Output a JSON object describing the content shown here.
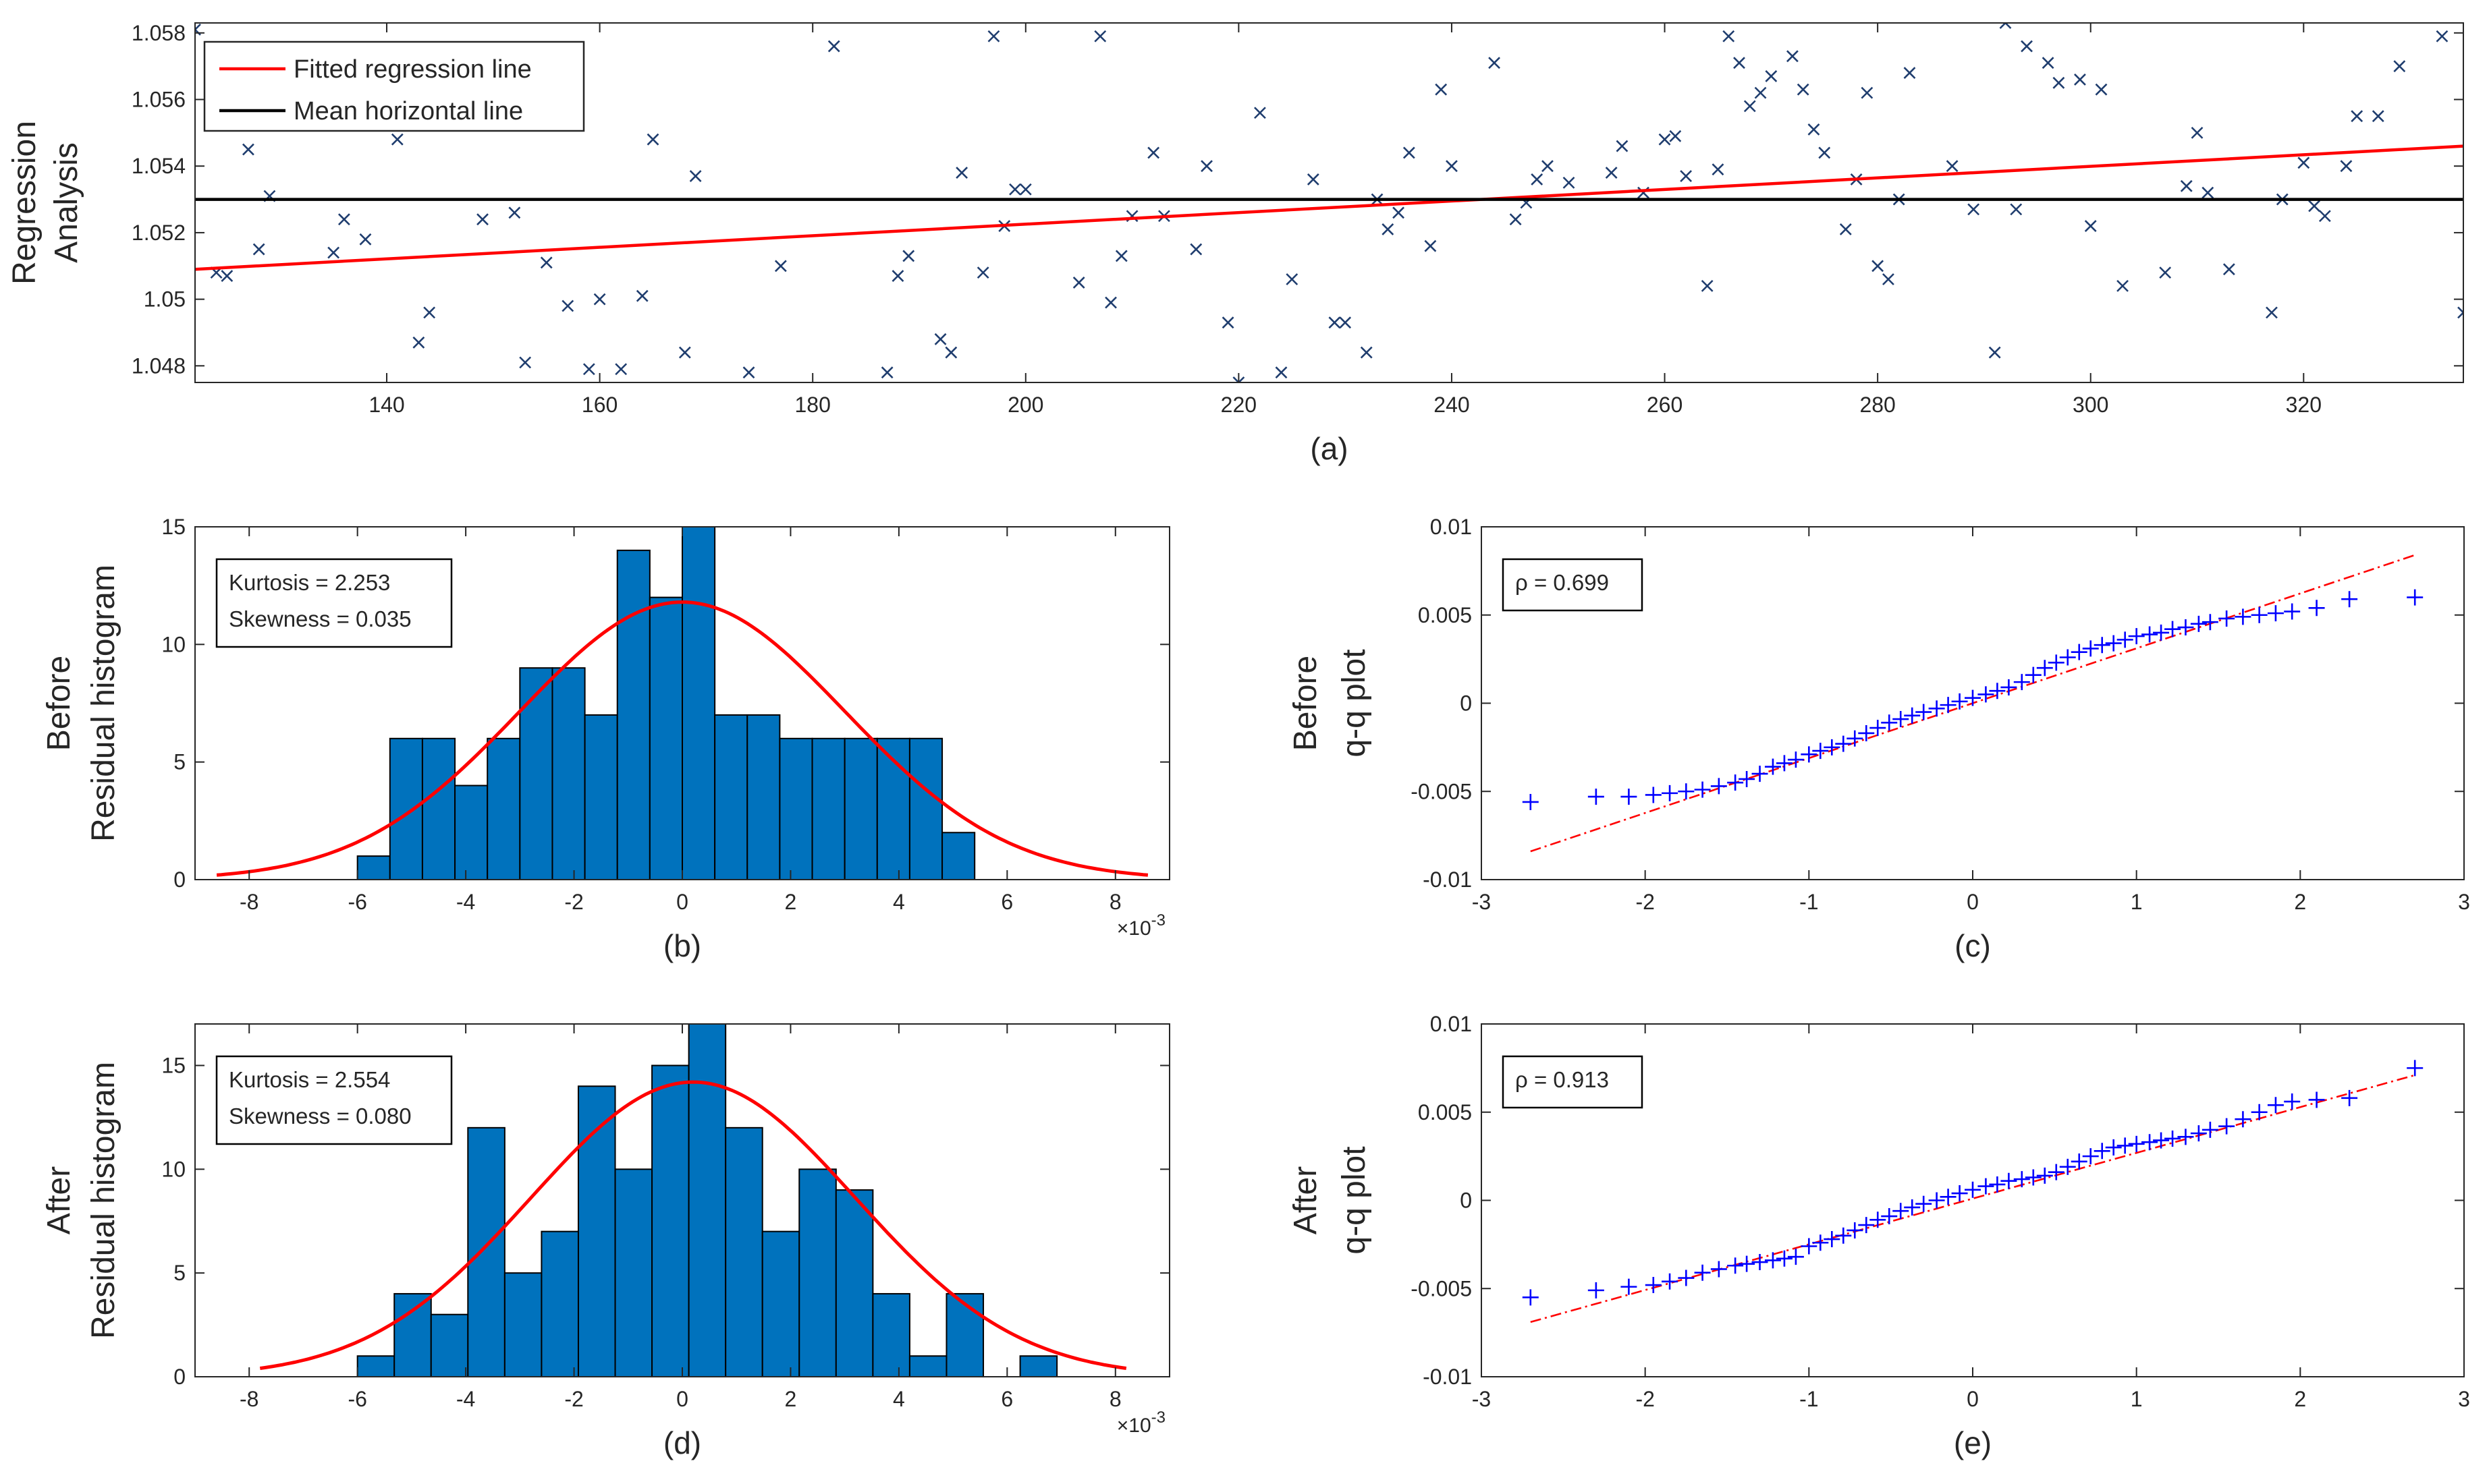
{
  "chart_data": [
    {
      "id": "a",
      "type": "scatter",
      "caption": "(a)",
      "ylabel_lines": [
        "Regression",
        "Analysis"
      ],
      "xlim": [
        122,
        335
      ],
      "ylim": [
        1.0475,
        1.0583
      ],
      "xticks": [
        140,
        160,
        180,
        200,
        220,
        240,
        260,
        280,
        300,
        320
      ],
      "yticks": [
        1.048,
        1.05,
        1.052,
        1.054,
        1.056,
        1.058
      ],
      "ytick_labels": [
        "1.048",
        "1.05",
        "1.052",
        "1.054",
        "1.056",
        "1.058"
      ],
      "marker_color": "#1f3d6e",
      "legend": {
        "placement": "top-left",
        "entries": [
          {
            "label": "Fitted regression line",
            "color": "#ff0000"
          },
          {
            "label": "Mean horizontal line",
            "color": "#000000"
          }
        ]
      },
      "regression_line": {
        "x": [
          122,
          335
        ],
        "y": [
          1.0509,
          1.0546
        ],
        "color": "#ff0000"
      },
      "mean_line": {
        "y": 1.053,
        "color": "#000000"
      },
      "points": [
        [
          122,
          1.0581
        ],
        [
          124,
          1.0508
        ],
        [
          125,
          1.0507
        ],
        [
          127,
          1.0545
        ],
        [
          128,
          1.0515
        ],
        [
          129,
          1.0531
        ],
        [
          135,
          1.0514
        ],
        [
          136,
          1.0524
        ],
        [
          138,
          1.0518
        ],
        [
          141,
          1.0548
        ],
        [
          143,
          1.0487
        ],
        [
          144,
          1.0496
        ],
        [
          149,
          1.0524
        ],
        [
          152,
          1.0526
        ],
        [
          153,
          1.0481
        ],
        [
          155,
          1.0511
        ],
        [
          157,
          1.0498
        ],
        [
          159,
          1.0479
        ],
        [
          160,
          1.05
        ],
        [
          162,
          1.0479
        ],
        [
          164,
          1.0501
        ],
        [
          165,
          1.0548
        ],
        [
          168,
          1.0484
        ],
        [
          169,
          1.0537
        ],
        [
          174,
          1.0478
        ],
        [
          177,
          1.051
        ],
        [
          182,
          1.0576
        ],
        [
          187,
          1.0478
        ],
        [
          188,
          1.0507
        ],
        [
          189,
          1.0513
        ],
        [
          192,
          1.0488
        ],
        [
          193,
          1.0484
        ],
        [
          194,
          1.0538
        ],
        [
          196,
          1.0508
        ],
        [
          197,
          1.0579
        ],
        [
          198,
          1.0522
        ],
        [
          199,
          1.0533
        ],
        [
          200,
          1.0533
        ],
        [
          205,
          1.0505
        ],
        [
          207,
          1.0579
        ],
        [
          208,
          1.0499
        ],
        [
          209,
          1.0513
        ],
        [
          210,
          1.0525
        ],
        [
          212,
          1.0544
        ],
        [
          213,
          1.0525
        ],
        [
          216,
          1.0515
        ],
        [
          217,
          1.054
        ],
        [
          219,
          1.0493
        ],
        [
          220,
          1.0475
        ],
        [
          222,
          1.0556
        ],
        [
          224,
          1.0478
        ],
        [
          225,
          1.0506
        ],
        [
          227,
          1.0536
        ],
        [
          229,
          1.0493
        ],
        [
          230,
          1.0493
        ],
        [
          232,
          1.0484
        ],
        [
          233,
          1.053
        ],
        [
          234,
          1.0521
        ],
        [
          235,
          1.0526
        ],
        [
          236,
          1.0544
        ],
        [
          238,
          1.0516
        ],
        [
          239,
          1.0563
        ],
        [
          240,
          1.054
        ],
        [
          244,
          1.0571
        ],
        [
          246,
          1.0524
        ],
        [
          247,
          1.0529
        ],
        [
          248,
          1.0536
        ],
        [
          249,
          1.054
        ],
        [
          251,
          1.0535
        ],
        [
          255,
          1.0538
        ],
        [
          256,
          1.0546
        ],
        [
          258,
          1.0532
        ],
        [
          260,
          1.0548
        ],
        [
          261,
          1.0549
        ],
        [
          262,
          1.0537
        ],
        [
          264,
          1.0504
        ],
        [
          265,
          1.0539
        ],
        [
          266,
          1.0579
        ],
        [
          267,
          1.0571
        ],
        [
          268,
          1.0558
        ],
        [
          269,
          1.0562
        ],
        [
          270,
          1.0567
        ],
        [
          272,
          1.0573
        ],
        [
          273,
          1.0563
        ],
        [
          274,
          1.0551
        ],
        [
          275,
          1.0544
        ],
        [
          277,
          1.0521
        ],
        [
          278,
          1.0536
        ],
        [
          279,
          1.0562
        ],
        [
          280,
          1.051
        ],
        [
          281,
          1.0506
        ],
        [
          282,
          1.053
        ],
        [
          283,
          1.0568
        ],
        [
          287,
          1.054
        ],
        [
          289,
          1.0527
        ],
        [
          291,
          1.0484
        ],
        [
          292,
          1.0583
        ],
        [
          293,
          1.0527
        ],
        [
          294,
          1.0576
        ],
        [
          296,
          1.0571
        ],
        [
          297,
          1.0565
        ],
        [
          299,
          1.0566
        ],
        [
          300,
          1.0522
        ],
        [
          301,
          1.0563
        ],
        [
          303,
          1.0504
        ],
        [
          307,
          1.0508
        ],
        [
          309,
          1.0534
        ],
        [
          310,
          1.055
        ],
        [
          311,
          1.0532
        ],
        [
          313,
          1.0509
        ],
        [
          317,
          1.0496
        ],
        [
          318,
          1.053
        ],
        [
          320,
          1.0541
        ],
        [
          321,
          1.0528
        ],
        [
          322,
          1.0525
        ],
        [
          324,
          1.054
        ],
        [
          325,
          1.0555
        ],
        [
          327,
          1.0555
        ],
        [
          329,
          1.057
        ],
        [
          333,
          1.0579
        ],
        [
          335,
          1.0496
        ]
      ]
    },
    {
      "id": "b",
      "type": "bar",
      "subtype": "histogram",
      "caption": "(b)",
      "ylabel_lines": [
        "Before",
        "Residual histogram"
      ],
      "xlim": [
        -9,
        9
      ],
      "ylim": [
        0,
        15
      ],
      "xticks": [
        -8,
        -6,
        -4,
        -2,
        0,
        2,
        4,
        6,
        8
      ],
      "yticks": [
        0,
        5,
        10,
        15
      ],
      "x_exponent": "×10",
      "x_exponent_power": "-3",
      "bar_color": "#0072bd",
      "bin_width": 0.6,
      "bin_edges_start": -6.0,
      "values": [
        1,
        6,
        6,
        4,
        6,
        9,
        9,
        7,
        14,
        12,
        15,
        7,
        7,
        6,
        6,
        6,
        6,
        6,
        2
      ],
      "fit_curve": {
        "color": "#ff0000",
        "mean": 0.0,
        "sigma": 3.0,
        "peak": 11.8,
        "range": [
          -8.6,
          8.6
        ]
      },
      "annotation": [
        "Kurtosis = 2.253",
        "Skewness = 0.035"
      ]
    },
    {
      "id": "c",
      "type": "scatter",
      "subtype": "qq",
      "caption": "(c)",
      "ylabel_lines": [
        "Before",
        "q-q plot"
      ],
      "xlim": [
        -3,
        3
      ],
      "ylim": [
        -0.01,
        0.01
      ],
      "xticks": [
        -3,
        -2,
        -1,
        0,
        1,
        2,
        3
      ],
      "yticks": [
        -0.01,
        -0.005,
        0,
        0.005,
        0.01
      ],
      "ytick_labels": [
        "-0.01",
        "-0.005",
        "0",
        "0.005",
        "0.01"
      ],
      "marker_color": "#0000ff",
      "ref_line": {
        "x": [
          -2.7,
          2.7
        ],
        "y": [
          -0.0084,
          0.0084
        ],
        "color": "#ff0000"
      },
      "points_x": [
        -2.7,
        -2.3,
        -2.1,
        -1.95,
        -1.85,
        -1.75,
        -1.65,
        -1.55,
        -1.45,
        -1.38,
        -1.3,
        -1.22,
        -1.15,
        -1.08,
        -1.0,
        -0.93,
        -0.86,
        -0.79,
        -0.72,
        -0.65,
        -0.58,
        -0.51,
        -0.44,
        -0.37,
        -0.3,
        -0.22,
        -0.15,
        -0.08,
        0.0,
        0.08,
        0.15,
        0.22,
        0.3,
        0.37,
        0.44,
        0.51,
        0.58,
        0.65,
        0.72,
        0.79,
        0.86,
        0.93,
        1.0,
        1.08,
        1.15,
        1.22,
        1.3,
        1.38,
        1.45,
        1.55,
        1.65,
        1.75,
        1.85,
        1.95,
        2.1,
        2.3,
        2.7
      ],
      "points_y": [
        -0.0056,
        -0.0053,
        -0.0053,
        -0.0052,
        -0.0051,
        -0.005,
        -0.0049,
        -0.0047,
        -0.0045,
        -0.0043,
        -0.004,
        -0.0036,
        -0.0034,
        -0.0032,
        -0.0029,
        -0.0027,
        -0.0025,
        -0.0023,
        -0.002,
        -0.0017,
        -0.0014,
        -0.0011,
        -0.0009,
        -0.0007,
        -0.0005,
        -0.0003,
        -0.0001,
        0.0001,
        0.0003,
        0.0005,
        0.0007,
        0.0009,
        0.0012,
        0.0016,
        0.002,
        0.0023,
        0.0026,
        0.0029,
        0.0031,
        0.0033,
        0.0034,
        0.0036,
        0.0038,
        0.0039,
        0.004,
        0.0042,
        0.0043,
        0.0045,
        0.0046,
        0.0048,
        0.0049,
        0.005,
        0.0051,
        0.0052,
        0.0054,
        0.0059,
        0.006
      ],
      "annotation": [
        "ρ = 0.699"
      ]
    },
    {
      "id": "d",
      "type": "bar",
      "subtype": "histogram",
      "caption": "(d)",
      "ylabel_lines": [
        "After",
        "Residual histogram"
      ],
      "xlim": [
        -9,
        9
      ],
      "ylim": [
        0,
        17
      ],
      "xticks": [
        -8,
        -6,
        -4,
        -2,
        0,
        2,
        4,
        6,
        8
      ],
      "yticks": [
        0,
        5,
        10,
        15
      ],
      "x_exponent": "×10",
      "x_exponent_power": "-3",
      "bar_color": "#0072bd",
      "bin_width": 0.68,
      "bin_edges_start": -6.0,
      "values": [
        1,
        4,
        3,
        12,
        5,
        7,
        14,
        10,
        15,
        17,
        12,
        7,
        10,
        9,
        4,
        1,
        4,
        0,
        1
      ],
      "fit_curve": {
        "color": "#ff0000",
        "mean": 0.2,
        "sigma": 3.0,
        "peak": 14.2,
        "range": [
          -7.8,
          8.2
        ]
      },
      "annotation": [
        "Kurtosis = 2.554",
        "Skewness = 0.080"
      ]
    },
    {
      "id": "e",
      "type": "scatter",
      "subtype": "qq",
      "caption": "(e)",
      "ylabel_lines": [
        "After",
        "q-q plot"
      ],
      "xlim": [
        -3,
        3
      ],
      "ylim": [
        -0.01,
        0.01
      ],
      "xticks": [
        -3,
        -2,
        -1,
        0,
        1,
        2,
        3
      ],
      "yticks": [
        -0.01,
        -0.005,
        0,
        0.005,
        0.01
      ],
      "ytick_labels": [
        "-0.01",
        "-0.005",
        "0",
        "0.005",
        "0.01"
      ],
      "marker_color": "#0000ff",
      "ref_line": {
        "x": [
          -2.7,
          2.7
        ],
        "y": [
          -0.0069,
          0.0071
        ],
        "color": "#ff0000"
      },
      "points_x": [
        -2.7,
        -2.3,
        -2.1,
        -1.95,
        -1.85,
        -1.75,
        -1.65,
        -1.55,
        -1.45,
        -1.38,
        -1.3,
        -1.22,
        -1.15,
        -1.08,
        -1.0,
        -0.93,
        -0.86,
        -0.79,
        -0.72,
        -0.65,
        -0.58,
        -0.51,
        -0.44,
        -0.37,
        -0.3,
        -0.22,
        -0.15,
        -0.08,
        0.0,
        0.08,
        0.15,
        0.22,
        0.3,
        0.37,
        0.44,
        0.51,
        0.58,
        0.65,
        0.72,
        0.79,
        0.86,
        0.93,
        1.0,
        1.08,
        1.15,
        1.22,
        1.3,
        1.38,
        1.45,
        1.55,
        1.65,
        1.75,
        1.85,
        1.95,
        2.1,
        2.3,
        2.7
      ],
      "points_y": [
        -0.0055,
        -0.0051,
        -0.0049,
        -0.0048,
        -0.0046,
        -0.0044,
        -0.0041,
        -0.0039,
        -0.0037,
        -0.0036,
        -0.0035,
        -0.0034,
        -0.0033,
        -0.0032,
        -0.0026,
        -0.0024,
        -0.0022,
        -0.002,
        -0.0017,
        -0.0014,
        -0.0011,
        -0.0009,
        -0.0006,
        -0.0004,
        -0.0002,
        0.0,
        0.0002,
        0.0004,
        0.0006,
        0.0008,
        0.0009,
        0.0011,
        0.0012,
        0.0013,
        0.0014,
        0.0016,
        0.0019,
        0.0022,
        0.0025,
        0.0028,
        0.003,
        0.0031,
        0.0032,
        0.0033,
        0.0034,
        0.0035,
        0.0036,
        0.0038,
        0.004,
        0.0042,
        0.0046,
        0.005,
        0.0054,
        0.0056,
        0.0057,
        0.0058,
        0.0075
      ],
      "annotation": [
        "ρ = 0.913"
      ]
    }
  ]
}
